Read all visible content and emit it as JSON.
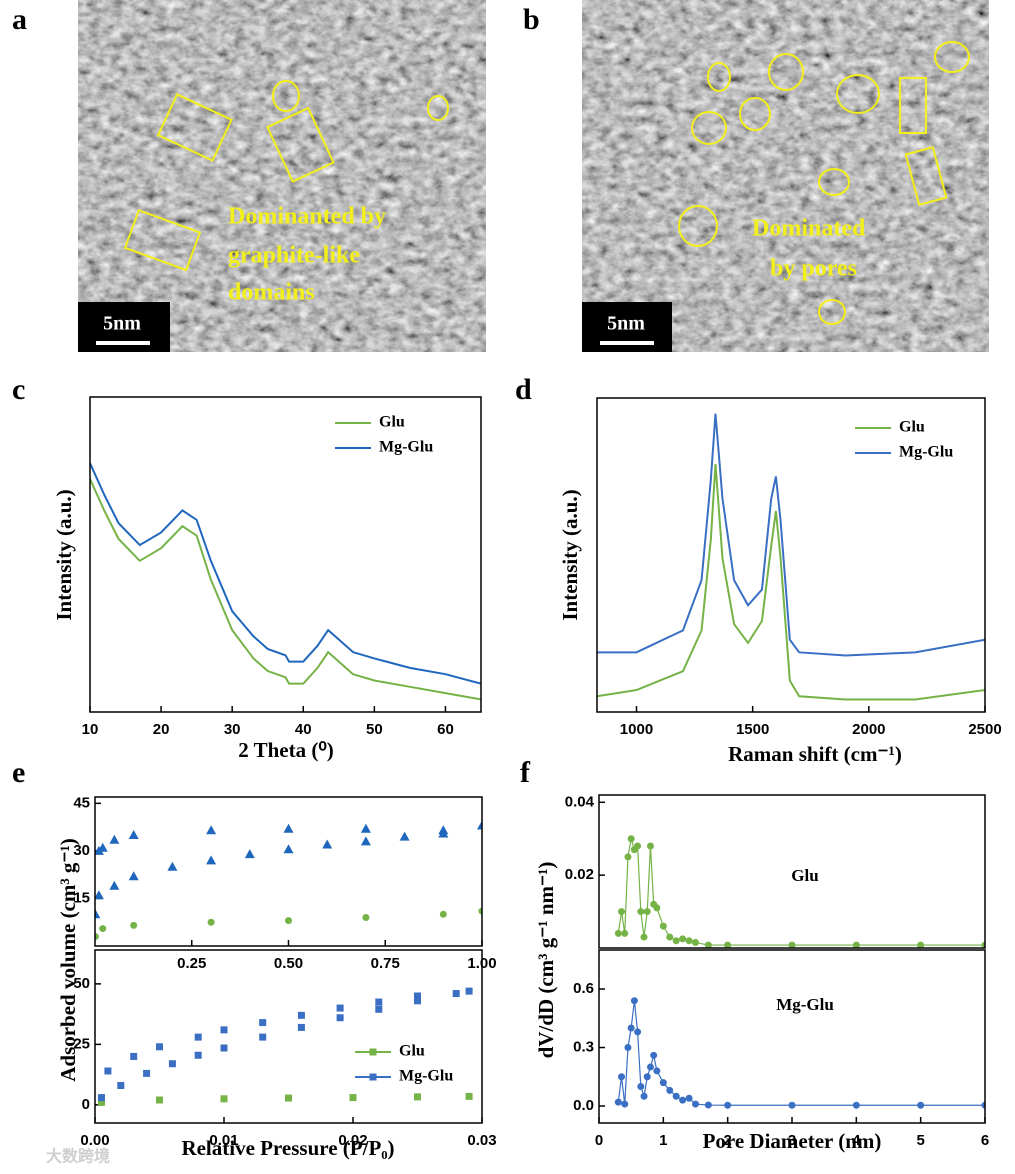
{
  "panels": [
    {
      "letter": "a",
      "annotation": [
        "Dominanted by",
        "graphite-like",
        "domains"
      ],
      "scale_bar": "5nm"
    },
    {
      "letter": "b",
      "annotation": [
        "Dominated",
        "by pores"
      ],
      "scale_bar": "5nm"
    }
  ],
  "watermark": "大数跨境",
  "chart_data": [
    {
      "type": "line",
      "panel": "c",
      "xlabel": "2 Theta (⁰)",
      "ylabel": "Intensity (a.u.)",
      "xlim": [
        10,
        65
      ],
      "xticks": [
        10,
        20,
        30,
        40,
        50,
        60
      ],
      "ylim": [
        0,
        100
      ],
      "legend": "upper right",
      "x": [
        10,
        12,
        14,
        17,
        20,
        23,
        25,
        27,
        30,
        33,
        35,
        37.5,
        38,
        40,
        42,
        43.5,
        45,
        47,
        50,
        55,
        60,
        65
      ],
      "series": [
        {
          "name": "Glu",
          "color": "#75b347",
          "values": [
            74,
            64,
            55,
            48,
            52,
            59,
            56,
            42,
            26,
            17,
            13,
            11,
            9,
            9,
            14,
            19,
            16,
            12,
            10,
            8,
            6,
            4
          ]
        },
        {
          "name": "Mg-Glu",
          "color": "#1f66bd",
          "values": [
            79,
            69,
            60,
            53,
            57,
            64,
            61,
            48,
            32,
            24,
            20,
            18,
            16,
            16,
            21,
            26,
            23,
            19,
            17,
            14,
            12,
            9
          ]
        }
      ]
    },
    {
      "type": "line",
      "panel": "d",
      "xlabel": "Raman shift (cm⁻¹)",
      "ylabel": "Intensity (a.u.)",
      "xlim": [
        830,
        2500
      ],
      "xticks": [
        1000,
        1500,
        2000,
        2500
      ],
      "ylim": [
        0,
        100
      ],
      "legend": "upper right",
      "x": [
        830,
        1000,
        1200,
        1280,
        1320,
        1340,
        1370,
        1420,
        1480,
        1540,
        1580,
        1600,
        1620,
        1660,
        1700,
        1900,
        2200,
        2500
      ],
      "series": [
        {
          "name": "Glu",
          "color": "#75b347",
          "values": [
            5,
            7,
            13,
            26,
            55,
            79,
            49,
            28,
            22,
            29,
            53,
            64,
            49,
            10,
            5,
            4,
            4,
            7
          ]
        },
        {
          "name": "Mg-Glu",
          "color": "#3a6fc4",
          "values": [
            19,
            19,
            26,
            42,
            74,
            95,
            68,
            42,
            34,
            39,
            68,
            75,
            61,
            23,
            19,
            18,
            19,
            23
          ]
        }
      ]
    },
    {
      "type": "scatter",
      "panel": "e",
      "ylabel": "Adsorbed volume (cm³ g⁻¹)",
      "xlim": [
        0,
        1
      ],
      "xticks": [
        0.25,
        {
          "value": 0.5,
          "label": "0.50"
        },
        0.75,
        {
          "value": 1,
          "label": "1.00"
        }
      ],
      "ylim": [
        0,
        47
      ],
      "yticks": [
        15,
        30,
        45
      ],
      "series": [
        {
          "name": "Glu",
          "color": "#75b347",
          "marker": "circle",
          "x": [
            0.001,
            0.02,
            0.1,
            0.3,
            0.5,
            0.7,
            0.9,
            1
          ],
          "values": [
            3,
            5.5,
            6.5,
            7.5,
            8,
            9,
            10,
            11
          ]
        },
        {
          "name": "Mg-Glu",
          "color": "#1f66bd",
          "marker": "triangle",
          "x": [
            0.001,
            0.01,
            0.05,
            0.1,
            0.2,
            0.3,
            0.4,
            0.5,
            0.6,
            0.7,
            0.8,
            0.9,
            1,
            0.9,
            0.7,
            0.5,
            0.3,
            0.1,
            0.05,
            0.02,
            0.01
          ],
          "values": [
            10,
            16,
            19,
            22,
            25,
            27,
            29,
            30.5,
            32,
            33,
            34.5,
            35.5,
            38,
            36.5,
            37,
            37,
            36.5,
            35,
            33.5,
            31,
            30
          ]
        }
      ]
    },
    {
      "type": "scatter",
      "xlabel": "Relative Pressure (P/P₀)",
      "xlim": [
        0,
        0.03
      ],
      "xticks": [
        {
          "value": 0,
          "label": "0.00"
        },
        0.01,
        0.02,
        0.03
      ],
      "ylim": [
        -7.5,
        64
      ],
      "yticks": [
        0,
        25,
        50
      ],
      "legend": "lower right",
      "series": [
        {
          "name": "Glu",
          "color": "#75b347",
          "marker": "square",
          "x": [
            0.0005,
            0.005,
            0.01,
            0.015,
            0.02,
            0.025,
            0.029
          ],
          "values": [
            1,
            2,
            2.5,
            2.8,
            3,
            3.3,
            3.5
          ]
        },
        {
          "name": "Mg-Glu",
          "color": "#3a6fc4",
          "marker": "square",
          "x": [
            0.0005,
            0.002,
            0.004,
            0.006,
            0.008,
            0.01,
            0.013,
            0.016,
            0.019,
            0.022,
            0.025,
            0.028,
            0.001,
            0.003,
            0.005,
            0.008,
            0.01,
            0.013,
            0.016,
            0.019,
            0.022,
            0.025,
            0.029
          ],
          "values": [
            3,
            8,
            13,
            17,
            20.5,
            23.5,
            28,
            32,
            36,
            39.5,
            43,
            46,
            14,
            20,
            24,
            28,
            31,
            34,
            37,
            40,
            42.5,
            45,
            47
          ]
        }
      ]
    },
    {
      "type": "line",
      "panel": "f",
      "ylabel": "dV/dD (cm³ g⁻¹ nm⁻¹)",
      "annotation": "Glu",
      "xlim": [
        0,
        6
      ],
      "ylim": [
        0,
        0.042
      ],
      "yticks": [
        0.02,
        0.04
      ],
      "x": [
        0.3,
        0.35,
        0.4,
        0.45,
        0.5,
        0.55,
        0.6,
        0.65,
        0.7,
        0.75,
        0.8,
        0.85,
        0.9,
        1,
        1.1,
        1.2,
        1.3,
        1.4,
        1.5,
        1.7,
        2,
        3,
        4,
        5,
        6
      ],
      "series": [
        {
          "name": "Glu",
          "color": "#75b347",
          "marker": "circle",
          "values": [
            0.004,
            0.01,
            0.004,
            0.025,
            0.03,
            0.027,
            0.028,
            0.01,
            0.003,
            0.01,
            0.028,
            0.012,
            0.011,
            0.006,
            0.003,
            0.002,
            0.0025,
            0.002,
            0.0015,
            0.0008,
            0.0008,
            0.0008,
            0.0008,
            0.0008,
            0.0008
          ]
        }
      ]
    },
    {
      "type": "line",
      "xlabel": "Pore Diameter (nm)",
      "annotation": "Mg-Glu",
      "xlim": [
        0,
        6
      ],
      "xticks": [
        0,
        1,
        2,
        3,
        4,
        5,
        6
      ],
      "ylim": [
        -0.087,
        0.8
      ],
      "yticks": [
        {
          "value": 0,
          "label": "0.0"
        },
        0.3,
        0.6
      ],
      "x": [
        0.3,
        0.35,
        0.4,
        0.45,
        0.5,
        0.55,
        0.6,
        0.65,
        0.7,
        0.75,
        0.8,
        0.85,
        0.9,
        1,
        1.1,
        1.2,
        1.3,
        1.4,
        1.5,
        1.7,
        2,
        3,
        4,
        5,
        6
      ],
      "series": [
        {
          "name": "Mg-Glu",
          "color": "#3a6fc4",
          "marker": "circle",
          "values": [
            0.02,
            0.15,
            0.01,
            0.3,
            0.4,
            0.54,
            0.38,
            0.1,
            0.05,
            0.15,
            0.2,
            0.26,
            0.18,
            0.12,
            0.08,
            0.05,
            0.03,
            0.04,
            0.01,
            0.005,
            0.004,
            0.004,
            0.004,
            0.004,
            0.004
          ]
        }
      ]
    }
  ]
}
